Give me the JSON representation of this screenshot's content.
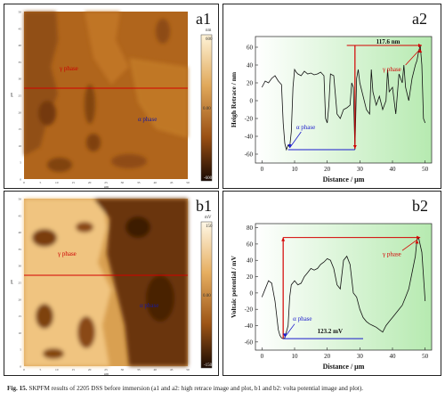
{
  "panels": {
    "a1": {
      "label": "a1",
      "colorbar_unit": "nm",
      "colorbar_ticks": [
        "600",
        "0.00",
        "-600"
      ],
      "phase_labels": {
        "gamma": "γ phase",
        "alpha": "α phase"
      },
      "axis_unit": "μm",
      "ticks": [
        "0",
        "5",
        "10",
        "15",
        "20",
        "25",
        "30",
        "35",
        "40",
        "45",
        "50"
      ]
    },
    "b1": {
      "label": "b1",
      "colorbar_unit": "mV",
      "colorbar_ticks": [
        "150",
        "0.00",
        "-150"
      ],
      "phase_labels": {
        "gamma": "γ phase",
        "alpha": "α phase"
      },
      "axis_unit": "μm",
      "ticks": [
        "0",
        "5",
        "10",
        "15",
        "20",
        "25",
        "30",
        "35",
        "40",
        "45",
        "50"
      ]
    },
    "a2": {
      "label": "a2"
    },
    "b2": {
      "label": "b2"
    }
  },
  "chart_data": [
    {
      "id": "a2",
      "type": "line",
      "xlabel": "Distance /  μm",
      "ylabel": "Heigh Retrace / nm",
      "xlim": [
        -2,
        52
      ],
      "ylim": [
        -70,
        72
      ],
      "xticks": [
        0,
        10,
        20,
        30,
        40,
        50
      ],
      "yticks": [
        -60,
        -40,
        -20,
        0,
        20,
        40,
        60
      ],
      "x": [
        0,
        1,
        2,
        3,
        4,
        5,
        6,
        6.5,
        7,
        7.5,
        8,
        8.5,
        9,
        9.5,
        10,
        10.5,
        11,
        12,
        13,
        14,
        15,
        16,
        17,
        18,
        19,
        19.5,
        20,
        20.5,
        21,
        22,
        23,
        24,
        25,
        26,
        27,
        27.5,
        28,
        28.5,
        29,
        29.5,
        30,
        31,
        32,
        33,
        33.5,
        34,
        35,
        36,
        37,
        38,
        38.5,
        39,
        40,
        41,
        42,
        43,
        43.5,
        44,
        45,
        46,
        47,
        47.5,
        48,
        48.5,
        49,
        49.5,
        50
      ],
      "y": [
        15,
        22,
        20,
        25,
        28,
        22,
        18,
        -25,
        -48,
        -55,
        -50,
        -52,
        -35,
        15,
        35,
        32,
        30,
        28,
        33,
        30,
        31,
        29,
        30,
        32,
        28,
        -20,
        -25,
        -5,
        30,
        28,
        -15,
        -20,
        -10,
        -8,
        -5,
        20,
        15,
        -55,
        25,
        35,
        20,
        5,
        -10,
        -15,
        35,
        10,
        -5,
        5,
        -10,
        0,
        35,
        10,
        15,
        -15,
        30,
        20,
        40,
        15,
        0,
        25,
        40,
        45,
        55,
        62,
        40,
        -20,
        -25
      ],
      "annotations": [
        {
          "text": "117.6 nm"
        },
        {
          "text": "γ phase"
        },
        {
          "text": "α phase"
        }
      ]
    },
    {
      "id": "b2",
      "type": "line",
      "xlabel": "Distance /  μm",
      "ylabel": "Voltaic potential / mV",
      "xlim": [
        -2,
        52
      ],
      "ylim": [
        -70,
        85
      ],
      "xticks": [
        0,
        10,
        20,
        30,
        40,
        50
      ],
      "yticks": [
        -60,
        -40,
        -20,
        0,
        20,
        40,
        60,
        80
      ],
      "x": [
        0,
        1,
        2,
        3,
        4,
        5,
        5.5,
        6,
        6.5,
        7,
        8,
        8.5,
        9,
        10,
        11,
        12,
        13,
        14,
        15,
        16,
        17,
        18,
        19,
        20,
        21,
        22,
        23,
        24,
        25,
        26,
        27,
        28,
        29,
        30,
        31,
        32,
        33,
        34,
        35,
        36,
        37,
        38,
        39,
        40,
        41,
        42,
        43,
        44,
        45,
        46,
        47,
        47.5,
        48,
        49,
        50
      ],
      "y": [
        -5,
        5,
        15,
        12,
        -10,
        -45,
        -52,
        -55,
        -56,
        -55,
        -40,
        -5,
        10,
        15,
        10,
        12,
        20,
        25,
        30,
        28,
        30,
        35,
        38,
        42,
        40,
        30,
        10,
        5,
        40,
        45,
        35,
        0,
        -5,
        -20,
        -30,
        -35,
        -38,
        -40,
        -42,
        -45,
        -48,
        -40,
        -35,
        -30,
        -25,
        -20,
        -15,
        -5,
        5,
        25,
        45,
        65,
        68,
        50,
        -10
      ],
      "annotations": [
        {
          "text": "γ phase"
        },
        {
          "text": "α phase"
        },
        {
          "text": "123.2 mV"
        }
      ]
    }
  ],
  "caption": {
    "prefix": "Fig. 15.",
    "text": "SKPFM results of 2205 DSS before immersion (a1 and a2: high retrace image and plot, b1 and b2: volta potential image and plot)."
  }
}
